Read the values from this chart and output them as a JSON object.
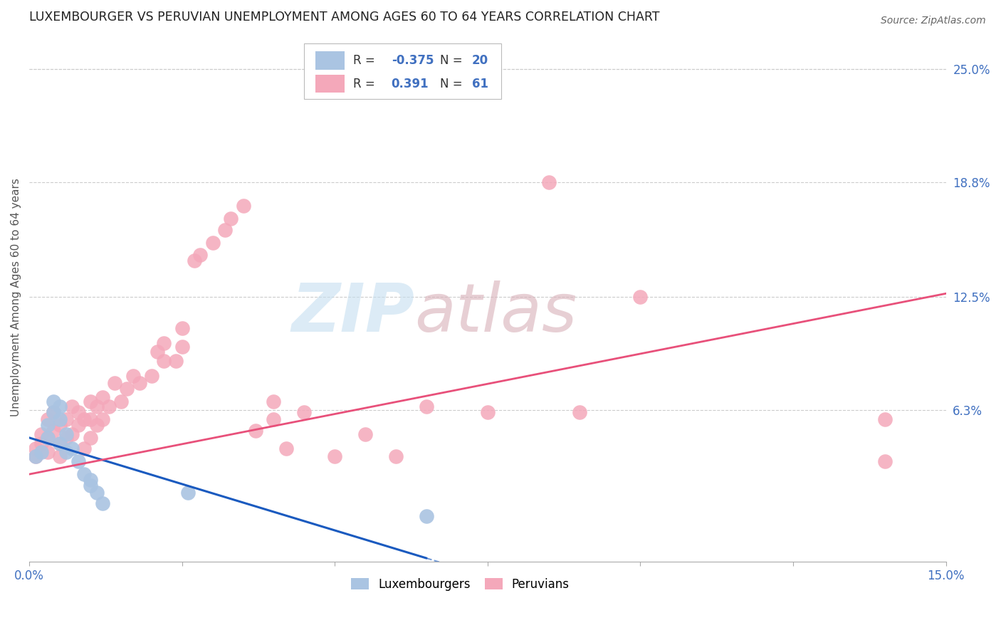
{
  "title": "LUXEMBOURGER VS PERUVIAN UNEMPLOYMENT AMONG AGES 60 TO 64 YEARS CORRELATION CHART",
  "source": "Source: ZipAtlas.com",
  "ylabel": "Unemployment Among Ages 60 to 64 years",
  "xlim": [
    0.0,
    0.15
  ],
  "ylim": [
    -0.02,
    0.27
  ],
  "xticks": [
    0.0,
    0.025,
    0.05,
    0.075,
    0.1,
    0.125,
    0.15
  ],
  "right_yticklabels": [
    "6.3%",
    "12.5%",
    "18.8%",
    "25.0%"
  ],
  "right_ytick_values": [
    0.063,
    0.125,
    0.188,
    0.25
  ],
  "lux_color": "#aac4e2",
  "peru_color": "#f4a8ba",
  "lux_trend_color": "#1a5abf",
  "peru_trend_color": "#e8507a",
  "lux_trend_x0": 0.0,
  "lux_trend_y0": 0.048,
  "lux_trend_x1": 0.065,
  "lux_trend_y1": -0.018,
  "lux_trend_solid_end": 0.065,
  "lux_trend_dash_end": 0.1,
  "peru_trend_x0": 0.0,
  "peru_trend_y0": 0.028,
  "peru_trend_x1": 0.15,
  "peru_trend_y1": 0.127,
  "lux_x": [
    0.001,
    0.002,
    0.003,
    0.003,
    0.004,
    0.004,
    0.005,
    0.005,
    0.005,
    0.006,
    0.006,
    0.007,
    0.008,
    0.009,
    0.01,
    0.01,
    0.011,
    0.012,
    0.026,
    0.065
  ],
  "lux_y": [
    0.038,
    0.04,
    0.055,
    0.048,
    0.062,
    0.068,
    0.065,
    0.058,
    0.045,
    0.05,
    0.04,
    0.042,
    0.035,
    0.028,
    0.025,
    0.022,
    0.018,
    0.012,
    0.018,
    0.005
  ],
  "peru_x": [
    0.001,
    0.001,
    0.002,
    0.002,
    0.003,
    0.003,
    0.003,
    0.004,
    0.004,
    0.005,
    0.005,
    0.005,
    0.006,
    0.006,
    0.007,
    0.007,
    0.008,
    0.008,
    0.009,
    0.009,
    0.01,
    0.01,
    0.01,
    0.011,
    0.011,
    0.012,
    0.012,
    0.013,
    0.014,
    0.015,
    0.016,
    0.017,
    0.018,
    0.02,
    0.021,
    0.022,
    0.022,
    0.024,
    0.025,
    0.025,
    0.027,
    0.028,
    0.03,
    0.032,
    0.033,
    0.035,
    0.037,
    0.04,
    0.04,
    0.042,
    0.045,
    0.05,
    0.055,
    0.06,
    0.065,
    0.075,
    0.085,
    0.09,
    0.1,
    0.14,
    0.14
  ],
  "peru_y": [
    0.038,
    0.042,
    0.045,
    0.05,
    0.04,
    0.048,
    0.058,
    0.052,
    0.062,
    0.038,
    0.045,
    0.055,
    0.048,
    0.058,
    0.05,
    0.065,
    0.055,
    0.062,
    0.042,
    0.058,
    0.048,
    0.058,
    0.068,
    0.055,
    0.065,
    0.058,
    0.07,
    0.065,
    0.078,
    0.068,
    0.075,
    0.082,
    0.078,
    0.082,
    0.095,
    0.09,
    0.1,
    0.09,
    0.098,
    0.108,
    0.145,
    0.148,
    0.155,
    0.162,
    0.168,
    0.175,
    0.052,
    0.058,
    0.068,
    0.042,
    0.062,
    0.038,
    0.05,
    0.038,
    0.065,
    0.062,
    0.188,
    0.062,
    0.125,
    0.058,
    0.035
  ],
  "background_color": "#ffffff",
  "grid_color": "#cccccc",
  "watermark_zip": "ZIP",
  "watermark_atlas": "atlas",
  "watermark_color_zip": "#c5dff0",
  "watermark_color_atlas": "#d8b0b8",
  "watermark_alpha": 0.6
}
